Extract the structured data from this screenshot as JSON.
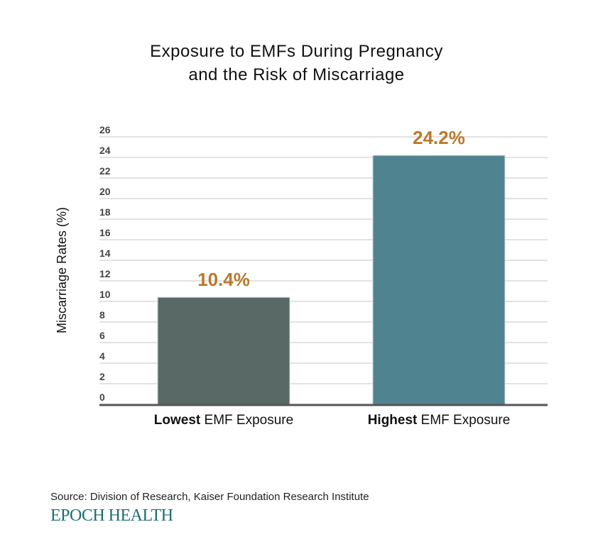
{
  "chart_data": {
    "type": "bar",
    "title_line1": "Exposure to EMFs During Pregnancy",
    "title_line2": "and the Risk of Miscarriage",
    "ylabel": "Miscarriage Rates (%)",
    "ylim": [
      0,
      26
    ],
    "yticks": [
      0,
      2,
      4,
      6,
      8,
      10,
      12,
      14,
      16,
      18,
      20,
      22,
      24,
      26
    ],
    "grid": true,
    "categories": [
      {
        "bold": "Lowest",
        "rest": " EMF Exposure"
      },
      {
        "bold": "Highest",
        "rest": " EMF Exposure"
      }
    ],
    "values": [
      10.4,
      24.2
    ],
    "data_labels": [
      "10.4%",
      "24.2%"
    ],
    "colors": [
      "#586966",
      "#508390"
    ],
    "label_color": "#b87a2e"
  },
  "source": "Source: Division of Research, Kaiser Foundation Research Institute",
  "logo": "EPOCH HEALTH"
}
